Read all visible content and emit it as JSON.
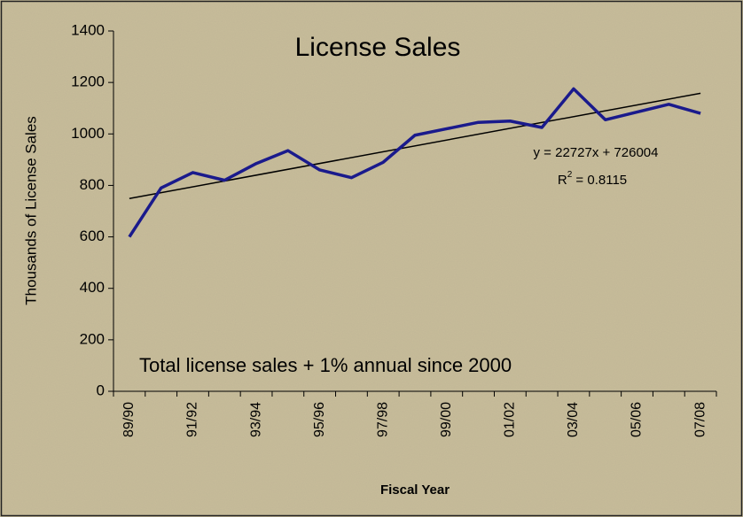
{
  "chart_data": {
    "type": "line",
    "title": "License Sales",
    "y_label": "Thousands of License Sales",
    "x_label": "Fiscal Year",
    "annotation": "Total license sales + 1% annual since 2000",
    "equation": "y = 22727x + 726004",
    "r_squared": {
      "prefix": "R",
      "exponent": "2",
      "text": " = 0.8115"
    },
    "categories": [
      "89/90",
      null,
      "91/92",
      null,
      "93/94",
      null,
      "95/96",
      null,
      "97/98",
      null,
      "99/00",
      null,
      "01/02",
      null,
      "03/04",
      null,
      "05/06",
      null,
      "07/08"
    ],
    "series": [
      {
        "color": "#1a1a8c",
        "values": [
          600,
          790,
          850,
          820,
          885,
          935,
          860,
          830,
          890,
          995,
          1020,
          1045,
          1050,
          1025,
          1175,
          1055,
          1085,
          1115,
          1080
        ]
      }
    ],
    "trendline": {
      "color": "#000000",
      "values": [
        749,
        1158
      ]
    },
    "ylim": [
      0,
      1400
    ],
    "yticks": [
      0,
      200,
      400,
      600,
      800,
      1000,
      1200,
      1400
    ],
    "grid": false
  }
}
